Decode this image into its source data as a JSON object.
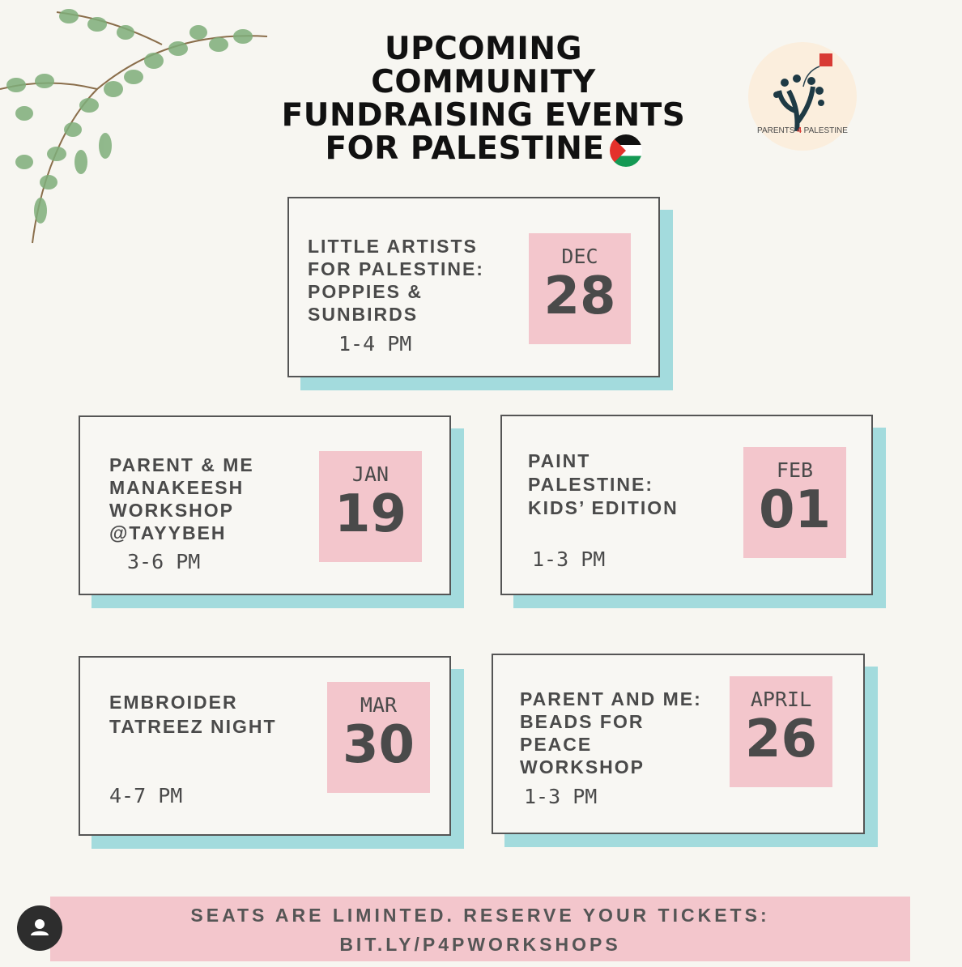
{
  "title": {
    "lines": [
      "UPCOMING",
      "COMMUNITY",
      "FUNDRAISING EVENTS",
      "FOR PALESTINE"
    ],
    "flag": "palestine-flag-icon"
  },
  "logo": {
    "text": "PARENTS 4 PALESTINE"
  },
  "colors": {
    "background": "#f7f6f1",
    "date_box": "#f3c6cc",
    "shadow": "#a3dbdd",
    "text": "#4a4a4a"
  },
  "events": [
    {
      "title": [
        "LITTLE ARTISTS",
        "FOR PALESTINE:",
        "POPPIES &",
        "SUNBIRDS"
      ],
      "time": "1-4 PM",
      "month": "DEC",
      "day": "28"
    },
    {
      "title": [
        "PARENT & ME",
        "MANAKEESH",
        "WORKSHOP",
        "@TAYYBEH"
      ],
      "time": "3-6 PM",
      "month": "JAN",
      "day": "19"
    },
    {
      "title": [
        "PAINT",
        "PALESTINE:",
        "KIDS’ EDITION"
      ],
      "time": "1-3 PM",
      "month": "FEB",
      "day": "01"
    },
    {
      "title": [
        "EMBROIDER",
        "TATREEZ NIGHT"
      ],
      "time": "4-7 PM",
      "month": "MAR",
      "day": "30"
    },
    {
      "title": [
        "PARENT AND ME:",
        "BEADS FOR",
        "PEACE",
        "WORKSHOP"
      ],
      "time": "1-3 PM",
      "month": "APRIL",
      "day": "26"
    }
  ],
  "banner": {
    "line1": "SEATS ARE LIMINTED. RESERVE YOUR TICKETS:",
    "line2": "BIT.LY/P4PWORKSHOPS"
  }
}
